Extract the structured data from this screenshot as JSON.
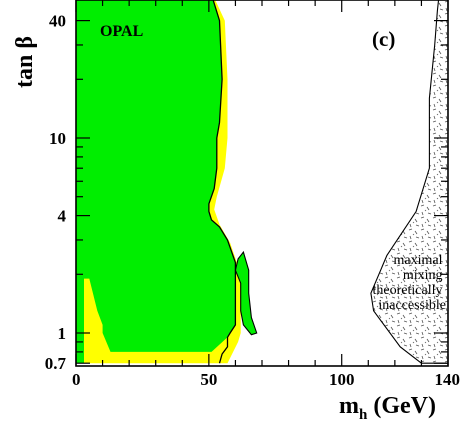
{
  "chart_data": {
    "type": "area",
    "title": "",
    "experiment_label": "OPAL",
    "panel_label": "(c)",
    "xlabel": {
      "main": "m",
      "sub": "h",
      "unit": "(GeV)"
    },
    "ylabel": "tan β",
    "xlim": [
      0,
      140
    ],
    "ylim": [
      0.7,
      50
    ],
    "yscale": "log",
    "x_ticks": [
      0,
      50,
      100,
      140
    ],
    "x_tick_labels": [
      "0",
      "50",
      "100",
      "140"
    ],
    "y_ticks": [
      0.7,
      1,
      4,
      10,
      40
    ],
    "y_tick_labels": [
      "0.7",
      "1",
      "4",
      "10",
      "40"
    ],
    "grid": false,
    "colors": {
      "excluded_observed": "#00ee00",
      "excluded_expected": "#ffff00",
      "inaccessible_hatch": "#555555"
    },
    "regions": [
      {
        "name": "inaccessible",
        "label_lines": [
          "maximal",
          "mixing",
          "theoretically",
          "inaccessible"
        ],
        "boundary": [
          [
            144,
            0.7
          ],
          [
            130,
            0.7
          ],
          [
            122,
            0.85
          ],
          [
            112,
            1.3
          ],
          [
            111,
            1.6
          ],
          [
            117,
            2.5
          ],
          [
            128,
            4.2
          ],
          [
            133,
            7
          ],
          [
            133,
            16
          ],
          [
            135,
            30
          ],
          [
            136,
            45
          ],
          [
            137,
            60
          ],
          [
            144,
            60
          ]
        ]
      },
      {
        "name": "yellow",
        "boundary": [
          [
            0,
            0.7
          ],
          [
            0,
            60
          ],
          [
            50,
            60
          ],
          [
            56,
            40
          ],
          [
            57,
            20
          ],
          [
            57,
            10
          ],
          [
            56,
            7
          ],
          [
            53,
            5
          ],
          [
            52,
            4.3
          ],
          [
            54,
            3.6
          ],
          [
            58,
            2.9
          ],
          [
            61,
            2.2
          ],
          [
            63,
            2.2
          ],
          [
            64,
            1.6
          ],
          [
            62,
            1.3
          ],
          [
            62,
            1.0
          ],
          [
            61,
            0.9
          ],
          [
            57,
            0.7
          ]
        ]
      },
      {
        "name": "green",
        "boundary": [
          [
            0,
            0.7
          ],
          [
            0,
            60
          ],
          [
            50,
            60
          ],
          [
            54,
            40
          ],
          [
            55,
            20
          ],
          [
            54,
            12
          ],
          [
            53,
            10
          ],
          [
            53,
            7
          ],
          [
            52,
            5.5
          ],
          [
            50,
            4.6
          ],
          [
            50,
            4.2
          ],
          [
            51,
            3.8
          ],
          [
            54,
            3.5
          ],
          [
            57,
            3.0
          ],
          [
            60,
            2.3
          ],
          [
            60,
            2.0
          ],
          [
            60,
            1.6
          ],
          [
            60,
            1.3
          ],
          [
            60,
            1.1
          ],
          [
            58,
            1.0
          ],
          [
            57,
            0.95
          ],
          [
            51,
            0.8
          ],
          [
            36,
            0.8
          ],
          [
            13,
            0.8
          ],
          [
            10,
            1.0
          ],
          [
            10,
            1.1
          ],
          [
            8,
            1.3
          ],
          [
            5,
            1.9
          ],
          [
            3,
            1.9
          ],
          [
            3,
            0.7
          ]
        ]
      },
      {
        "name": "green-island",
        "boundary": [
          [
            61,
            2.4
          ],
          [
            63,
            2.6
          ],
          [
            65,
            2.1
          ],
          [
            65,
            1.6
          ],
          [
            66,
            1.2
          ],
          [
            68,
            1.0
          ],
          [
            66,
            0.98
          ],
          [
            63,
            1.1
          ],
          [
            62,
            1.3
          ],
          [
            62,
            1.8
          ],
          [
            60,
            2.1
          ]
        ]
      }
    ],
    "boundary_lines": [
      {
        "name": "right-edge",
        "points": [
          [
            50,
            60
          ],
          [
            54,
            40
          ],
          [
            55,
            20
          ],
          [
            54,
            12
          ],
          [
            53,
            10
          ],
          [
            53,
            7
          ],
          [
            52,
            5.5
          ],
          [
            50,
            4.6
          ],
          [
            50,
            4.2
          ],
          [
            51,
            3.8
          ],
          [
            54,
            3.5
          ],
          [
            57,
            3.0
          ],
          [
            60,
            2.3
          ],
          [
            60,
            2.0
          ],
          [
            60,
            1.6
          ],
          [
            60,
            1.3
          ],
          [
            60,
            1.1
          ],
          [
            58,
            1.0
          ],
          [
            57,
            0.95
          ],
          [
            57,
            0.85
          ],
          [
            55,
            0.78
          ],
          [
            54,
            0.7
          ]
        ]
      }
    ]
  }
}
